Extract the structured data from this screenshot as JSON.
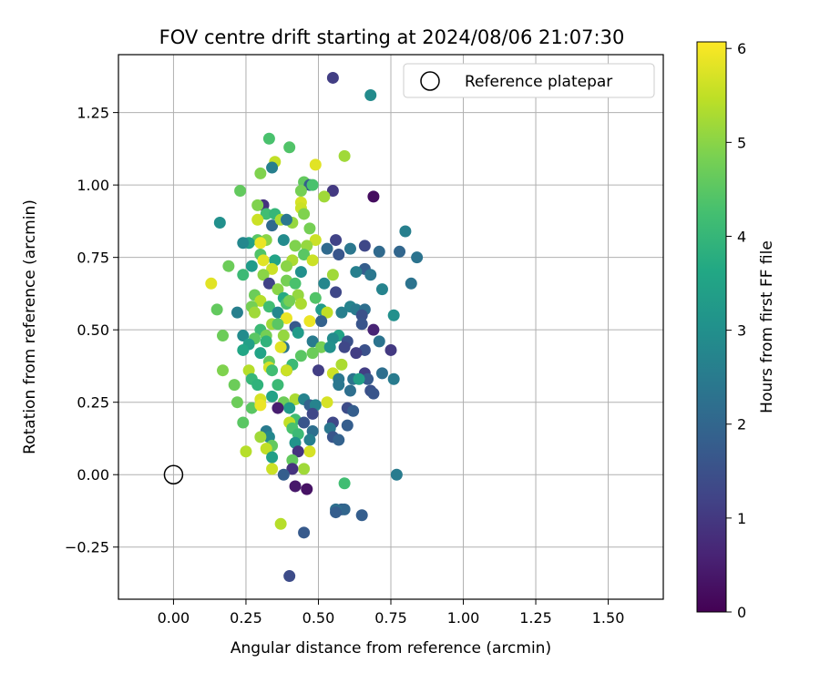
{
  "chart_data": {
    "type": "scatter",
    "title": "FOV centre drift starting at 2024/08/06 21:07:30",
    "xlabel": "Angular distance from reference (arcmin)",
    "ylabel": "Rotation from reference (arcmin)",
    "xlim": [
      -0.19,
      1.69
    ],
    "ylim": [
      -0.43,
      1.45
    ],
    "xticks": [
      0.0,
      0.25,
      0.5,
      0.75,
      1.0,
      1.25,
      1.5
    ],
    "xtick_labels": [
      "0.00",
      "0.25",
      "0.50",
      "0.75",
      "1.00",
      "1.25",
      "1.50"
    ],
    "yticks": [
      -0.25,
      0.0,
      0.25,
      0.5,
      0.75,
      1.0,
      1.25
    ],
    "ytick_labels": [
      "−0.25",
      "0.00",
      "0.25",
      "0.50",
      "0.75",
      "1.00",
      "1.25"
    ],
    "grid": true,
    "legend": {
      "placement": "top-right",
      "entries": [
        "Reference platepar"
      ]
    },
    "reference_point": {
      "x": 0.0,
      "y": 0.0
    },
    "colorbar": {
      "label": "Hours from first FF file",
      "range": [
        0,
        6.07
      ],
      "ticks": [
        0,
        1,
        2,
        3,
        4,
        5,
        6
      ],
      "tick_labels": [
        "0",
        "1",
        "2",
        "3",
        "4",
        "5",
        "6"
      ],
      "colormap": "viridis"
    },
    "points": [
      [
        0.55,
        1.37,
        1.1
      ],
      [
        0.68,
        1.31,
        2.9
      ],
      [
        0.33,
        1.16,
        4.3
      ],
      [
        0.4,
        1.13,
        4.4
      ],
      [
        0.35,
        1.08,
        5.5
      ],
      [
        0.34,
        1.06,
        2.6
      ],
      [
        0.49,
        1.07,
        5.8
      ],
      [
        0.59,
        1.1,
        5.2
      ],
      [
        0.3,
        1.04,
        4.9
      ],
      [
        0.45,
        1.01,
        4.6
      ],
      [
        0.47,
        1.0,
        1.8
      ],
      [
        0.48,
        1.0,
        4.3
      ],
      [
        0.44,
        0.98,
        4.8
      ],
      [
        0.55,
        0.98,
        1.0
      ],
      [
        0.23,
        0.98,
        4.6
      ],
      [
        0.69,
        0.96,
        0.2
      ],
      [
        0.52,
        0.96,
        5.2
      ],
      [
        0.44,
        0.94,
        5.7
      ],
      [
        0.31,
        0.93,
        0.9
      ],
      [
        0.44,
        0.92,
        5.6
      ],
      [
        0.29,
        0.93,
        4.9
      ],
      [
        0.32,
        0.9,
        4.2
      ],
      [
        0.35,
        0.9,
        4.0
      ],
      [
        0.45,
        0.9,
        4.9
      ],
      [
        0.34,
        0.86,
        2.1
      ],
      [
        0.37,
        0.88,
        5.3
      ],
      [
        0.29,
        0.88,
        5.6
      ],
      [
        0.41,
        0.87,
        5.1
      ],
      [
        0.39,
        0.88,
        2.4
      ],
      [
        0.16,
        0.87,
        3.0
      ],
      [
        0.47,
        0.85,
        4.8
      ],
      [
        0.8,
        0.84,
        2.6
      ],
      [
        0.29,
        0.81,
        4.5
      ],
      [
        0.32,
        0.81,
        5.0
      ],
      [
        0.38,
        0.81,
        2.9
      ],
      [
        0.26,
        0.8,
        3.4
      ],
      [
        0.3,
        0.8,
        5.9
      ],
      [
        0.49,
        0.81,
        5.6
      ],
      [
        0.56,
        0.81,
        1.2
      ],
      [
        0.42,
        0.79,
        4.9
      ],
      [
        0.24,
        0.8,
        2.8
      ],
      [
        0.46,
        0.79,
        5.1
      ],
      [
        0.53,
        0.78,
        2.1
      ],
      [
        0.61,
        0.78,
        2.4
      ],
      [
        0.66,
        0.79,
        1.3
      ],
      [
        0.71,
        0.77,
        2.1
      ],
      [
        0.3,
        0.76,
        4.4
      ],
      [
        0.57,
        0.76,
        1.6
      ],
      [
        0.78,
        0.77,
        2.0
      ],
      [
        0.45,
        0.76,
        4.5
      ],
      [
        0.35,
        0.74,
        3.5
      ],
      [
        0.41,
        0.74,
        5.3
      ],
      [
        0.48,
        0.74,
        5.6
      ],
      [
        0.84,
        0.75,
        2.3
      ],
      [
        0.19,
        0.72,
        4.7
      ],
      [
        0.27,
        0.72,
        3.3
      ],
      [
        0.31,
        0.74,
        5.8
      ],
      [
        0.34,
        0.71,
        5.6
      ],
      [
        0.39,
        0.72,
        5.0
      ],
      [
        0.66,
        0.71,
        1.8
      ],
      [
        0.63,
        0.7,
        2.6
      ],
      [
        0.44,
        0.7,
        3.0
      ],
      [
        0.31,
        0.69,
        5.0
      ],
      [
        0.24,
        0.69,
        4.1
      ],
      [
        0.55,
        0.69,
        5.2
      ],
      [
        0.68,
        0.69,
        2.4
      ],
      [
        0.52,
        0.66,
        2.8
      ],
      [
        0.39,
        0.67,
        4.8
      ],
      [
        0.33,
        0.66,
        1.2
      ],
      [
        0.42,
        0.66,
        4.3
      ],
      [
        0.82,
        0.66,
        2.3
      ],
      [
        0.13,
        0.66,
        5.8
      ],
      [
        0.36,
        0.64,
        5.0
      ],
      [
        0.72,
        0.64,
        2.7
      ],
      [
        0.56,
        0.63,
        1.3
      ],
      [
        0.28,
        0.62,
        4.7
      ],
      [
        0.38,
        0.61,
        3.7
      ],
      [
        0.43,
        0.62,
        5.1
      ],
      [
        0.49,
        0.61,
        4.4
      ],
      [
        0.3,
        0.6,
        5.4
      ],
      [
        0.39,
        0.59,
        4.3
      ],
      [
        0.4,
        0.6,
        4.8
      ],
      [
        0.33,
        0.58,
        4.2
      ],
      [
        0.27,
        0.58,
        4.8
      ],
      [
        0.61,
        0.58,
        2.7
      ],
      [
        0.63,
        0.57,
        2.5
      ],
      [
        0.66,
        0.57,
        2.2
      ],
      [
        0.15,
        0.57,
        4.6
      ],
      [
        0.44,
        0.59,
        5.3
      ],
      [
        0.51,
        0.57,
        3.3
      ],
      [
        0.36,
        0.56,
        2.8
      ],
      [
        0.53,
        0.56,
        5.5
      ],
      [
        0.58,
        0.56,
        2.6
      ],
      [
        0.22,
        0.56,
        2.6
      ],
      [
        0.28,
        0.56,
        5.2
      ],
      [
        0.76,
        0.55,
        3.0
      ],
      [
        0.65,
        0.55,
        1.5
      ],
      [
        0.34,
        0.52,
        5.2
      ],
      [
        0.39,
        0.54,
        5.9
      ],
      [
        0.36,
        0.52,
        4.5
      ],
      [
        0.47,
        0.53,
        5.9
      ],
      [
        0.51,
        0.53,
        1.9
      ],
      [
        0.42,
        0.51,
        1.7
      ],
      [
        0.65,
        0.52,
        1.6
      ],
      [
        0.3,
        0.5,
        4.1
      ],
      [
        0.24,
        0.48,
        2.9
      ],
      [
        0.17,
        0.48,
        4.7
      ],
      [
        0.32,
        0.48,
        4.8
      ],
      [
        0.38,
        0.48,
        5.1
      ],
      [
        0.43,
        0.49,
        3.3
      ],
      [
        0.57,
        0.48,
        3.5
      ],
      [
        0.69,
        0.5,
        0.6
      ],
      [
        0.28,
        0.47,
        4.5
      ],
      [
        0.55,
        0.47,
        2.9
      ],
      [
        0.6,
        0.46,
        1.5
      ],
      [
        0.48,
        0.46,
        2.5
      ],
      [
        0.71,
        0.46,
        2.3
      ],
      [
        0.26,
        0.45,
        3.4
      ],
      [
        0.32,
        0.46,
        3.9
      ],
      [
        0.38,
        0.44,
        2.4
      ],
      [
        0.51,
        0.44,
        4.8
      ],
      [
        0.59,
        0.44,
        1.3
      ],
      [
        0.54,
        0.44,
        3.0
      ],
      [
        0.37,
        0.44,
        5.8
      ],
      [
        0.24,
        0.43,
        3.6
      ],
      [
        0.66,
        0.43,
        1.5
      ],
      [
        0.75,
        0.43,
        1.0
      ],
      [
        0.3,
        0.42,
        3.5
      ],
      [
        0.44,
        0.41,
        4.5
      ],
      [
        0.48,
        0.42,
        4.7
      ],
      [
        0.63,
        0.42,
        1.1
      ],
      [
        0.33,
        0.39,
        4.6
      ],
      [
        0.41,
        0.38,
        4.1
      ],
      [
        0.58,
        0.38,
        5.3
      ],
      [
        0.39,
        0.36,
        2.1
      ],
      [
        0.5,
        0.36,
        1.1
      ],
      [
        0.33,
        0.37,
        5.7
      ],
      [
        0.39,
        0.36,
        5.6
      ],
      [
        0.26,
        0.36,
        5.4
      ],
      [
        0.17,
        0.36,
        4.9
      ],
      [
        0.34,
        0.36,
        4.2
      ],
      [
        0.55,
        0.35,
        5.6
      ],
      [
        0.66,
        0.35,
        1.1
      ],
      [
        0.72,
        0.35,
        2.2
      ],
      [
        0.67,
        0.33,
        1.7
      ],
      [
        0.57,
        0.33,
        2.4
      ],
      [
        0.62,
        0.33,
        2.3
      ],
      [
        0.76,
        0.33,
        2.5
      ],
      [
        0.27,
        0.33,
        4.0
      ],
      [
        0.36,
        0.31,
        4.1
      ],
      [
        0.21,
        0.31,
        4.7
      ],
      [
        0.57,
        0.31,
        2.4
      ],
      [
        0.29,
        0.31,
        3.9
      ],
      [
        0.64,
        0.33,
        3.4
      ],
      [
        0.68,
        0.29,
        1.5
      ],
      [
        0.69,
        0.28,
        1.6
      ],
      [
        0.34,
        0.27,
        3.5
      ],
      [
        0.61,
        0.29,
        2.2
      ],
      [
        0.38,
        0.25,
        4.7
      ],
      [
        0.3,
        0.26,
        5.7
      ],
      [
        0.42,
        0.26,
        5.3
      ],
      [
        0.45,
        0.26,
        2.7
      ],
      [
        0.47,
        0.24,
        1.9
      ],
      [
        0.49,
        0.24,
        2.7
      ],
      [
        0.53,
        0.25,
        5.7
      ],
      [
        0.6,
        0.23,
        1.4
      ],
      [
        0.22,
        0.25,
        4.7
      ],
      [
        0.27,
        0.23,
        4.5
      ],
      [
        0.4,
        0.23,
        3.3
      ],
      [
        0.3,
        0.24,
        5.9
      ],
      [
        0.36,
        0.23,
        0.5
      ],
      [
        0.62,
        0.22,
        1.8
      ],
      [
        0.48,
        0.21,
        1.3
      ],
      [
        0.42,
        0.19,
        4.2
      ],
      [
        0.24,
        0.18,
        4.5
      ],
      [
        0.4,
        0.18,
        5.5
      ],
      [
        0.45,
        0.18,
        1.6
      ],
      [
        0.55,
        0.18,
        1.3
      ],
      [
        0.6,
        0.17,
        1.8
      ],
      [
        0.41,
        0.16,
        4.3
      ],
      [
        0.54,
        0.16,
        2.4
      ],
      [
        0.48,
        0.15,
        2.2
      ],
      [
        0.32,
        0.15,
        2.5
      ],
      [
        0.43,
        0.14,
        4.1
      ],
      [
        0.33,
        0.13,
        2.8
      ],
      [
        0.3,
        0.13,
        5.2
      ],
      [
        0.55,
        0.13,
        1.6
      ],
      [
        0.47,
        0.12,
        2.6
      ],
      [
        0.57,
        0.12,
        1.9
      ],
      [
        0.42,
        0.11,
        3.1
      ],
      [
        0.34,
        0.1,
        4.6
      ],
      [
        0.47,
        0.08,
        5.7
      ],
      [
        0.25,
        0.08,
        5.4
      ],
      [
        0.32,
        0.09,
        5.5
      ],
      [
        0.43,
        0.08,
        0.9
      ],
      [
        0.34,
        0.06,
        3.4
      ],
      [
        0.41,
        0.05,
        4.6
      ],
      [
        0.34,
        0.02,
        5.6
      ],
      [
        0.45,
        0.02,
        5.2
      ],
      [
        0.41,
        0.02,
        0.9
      ],
      [
        0.38,
        0.0,
        1.8
      ],
      [
        0.77,
        0.0,
        2.5
      ],
      [
        0.59,
        -0.03,
        4.2
      ],
      [
        0.42,
        -0.04,
        0.4
      ],
      [
        0.46,
        -0.05,
        0.3
      ],
      [
        0.58,
        -0.12,
        1.8
      ],
      [
        0.59,
        -0.12,
        2.0
      ],
      [
        0.56,
        -0.12,
        2.2
      ],
      [
        0.56,
        -0.13,
        1.8
      ],
      [
        0.65,
        -0.14,
        1.8
      ],
      [
        0.37,
        -0.17,
        5.4
      ],
      [
        0.45,
        -0.2,
        1.7
      ],
      [
        0.4,
        -0.35,
        1.4
      ]
    ]
  }
}
